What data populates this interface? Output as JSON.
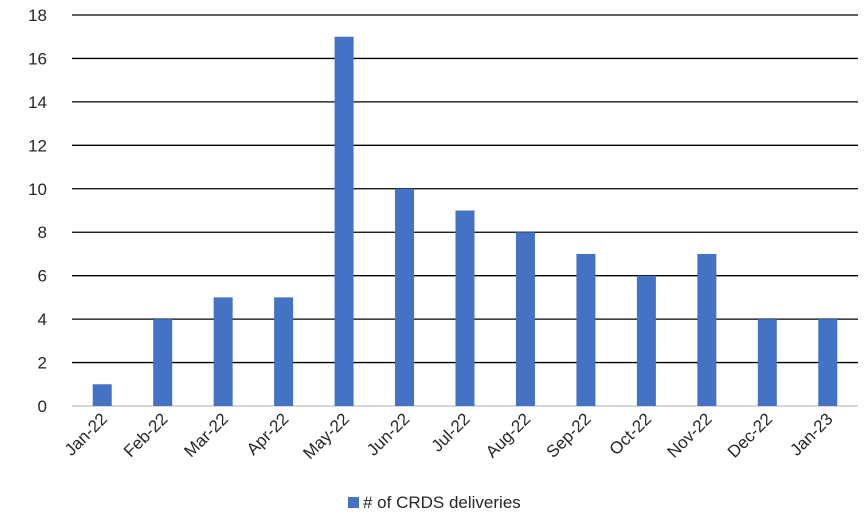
{
  "chart_data": {
    "type": "bar",
    "categories": [
      "Jan-22",
      "Feb-22",
      "Mar-22",
      "Apr-22",
      "May-22",
      "Jun-22",
      "Jul-22",
      "Aug-22",
      "Sep-22",
      "Oct-22",
      "Nov-22",
      "Dec-22",
      "Jan-23"
    ],
    "series": [
      {
        "name": "# of CRDS deliveries",
        "values": [
          1,
          4,
          5,
          5,
          17,
          10,
          9,
          8,
          7,
          6,
          7,
          4,
          4
        ],
        "color": "#4472C4"
      }
    ],
    "ylim": [
      0,
      18
    ],
    "yticks": [
      0,
      2,
      4,
      6,
      8,
      10,
      12,
      14,
      16,
      18
    ],
    "grid": true,
    "legend": "bottom-center"
  }
}
